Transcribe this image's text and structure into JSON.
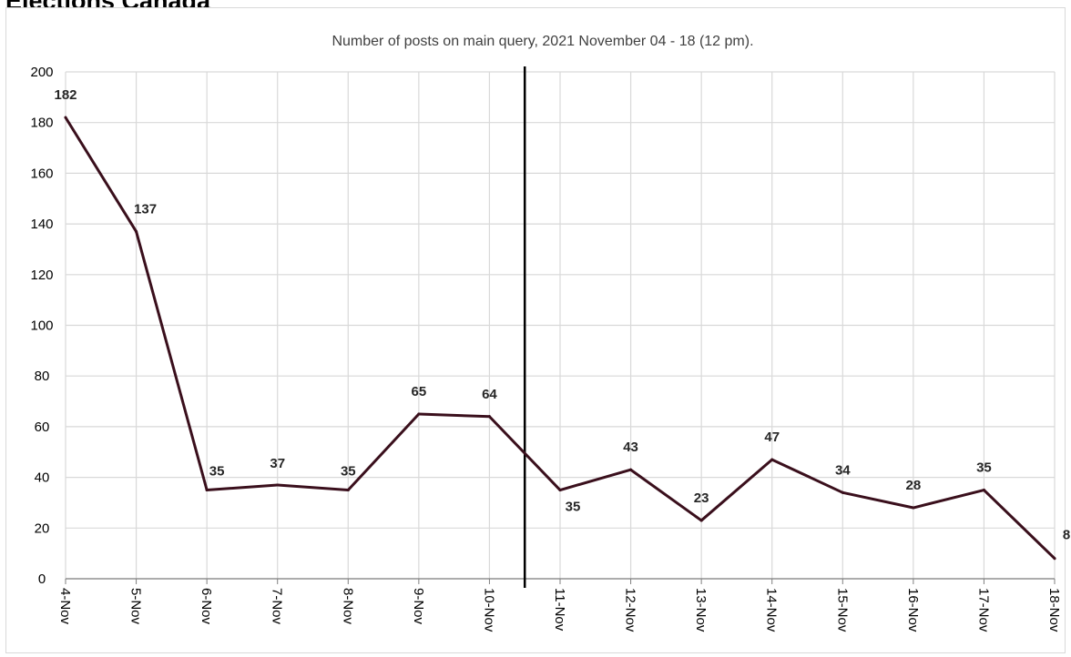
{
  "page": {
    "heading": "Elections Canada"
  },
  "chart_data": {
    "type": "line",
    "title": "Number of posts on main query, 2021 November 04 - 18 (12 pm).",
    "xlabel": "",
    "ylabel": "",
    "categories": [
      "4-Nov",
      "5-Nov",
      "6-Nov",
      "7-Nov",
      "8-Nov",
      "9-Nov",
      "10-Nov",
      "11-Nov",
      "12-Nov",
      "13-Nov",
      "14-Nov",
      "15-Nov",
      "16-Nov",
      "17-Nov",
      "18-Nov"
    ],
    "series": [
      {
        "values": [
          182,
          137,
          35,
          37,
          35,
          65,
          64,
          35,
          43,
          23,
          47,
          34,
          28,
          35,
          8
        ]
      }
    ],
    "data_labels": [
      "182",
      "137",
      "35",
      "37",
      "35",
      "65",
      "64",
      "35",
      "43",
      "23",
      "47",
      "34",
      "28",
      "35",
      "8"
    ],
    "ylim": [
      0,
      200
    ],
    "y_ticks": [
      "0",
      "20",
      "40",
      "60",
      "80",
      "100",
      "120",
      "140",
      "160",
      "180",
      "200"
    ],
    "grid": true,
    "legend": "none",
    "vertical_marker_between": [
      "10-Nov",
      "11-Nov"
    ],
    "colors": {
      "line": "#3a0f1c",
      "marker_line": "#000000",
      "grid": "#d9d9d9"
    }
  }
}
